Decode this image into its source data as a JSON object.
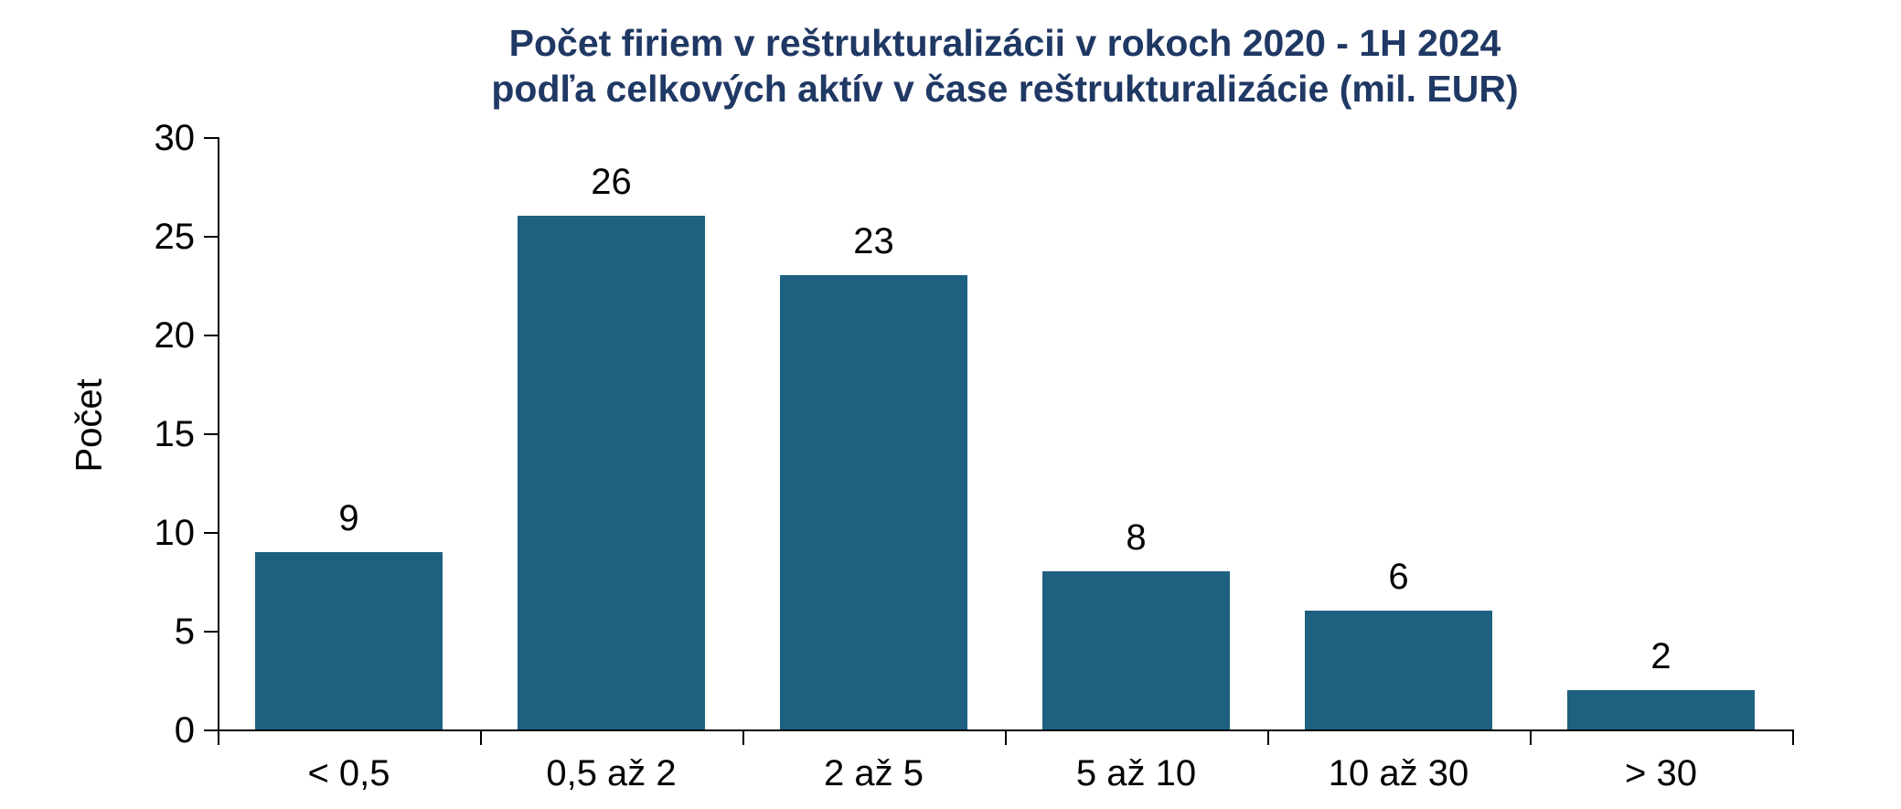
{
  "chart_data": {
    "type": "bar",
    "title_line1": "Počet firiem v reštrukturalizácii v rokoch 2020 - 1H 2024",
    "title_line2": "podľa celkových aktív v čase reštrukturalizácie (mil. EUR)",
    "categories": [
      "< 0,5",
      "0,5 až 2",
      "2 až 5",
      "5 až 10",
      "10 až 30",
      "> 30"
    ],
    "values": [
      9,
      26,
      23,
      8,
      6,
      2
    ],
    "xlabel": "",
    "ylabel": "Počet",
    "ylim": [
      0,
      30
    ],
    "yticks": [
      0,
      5,
      10,
      15,
      20,
      25,
      30
    ],
    "grid": false,
    "legend": "none",
    "colors": {
      "bar": "#1D6080",
      "title": "#1F3864",
      "axis": "#000000",
      "label": "#000000",
      "background": "#FFFFFF"
    }
  }
}
